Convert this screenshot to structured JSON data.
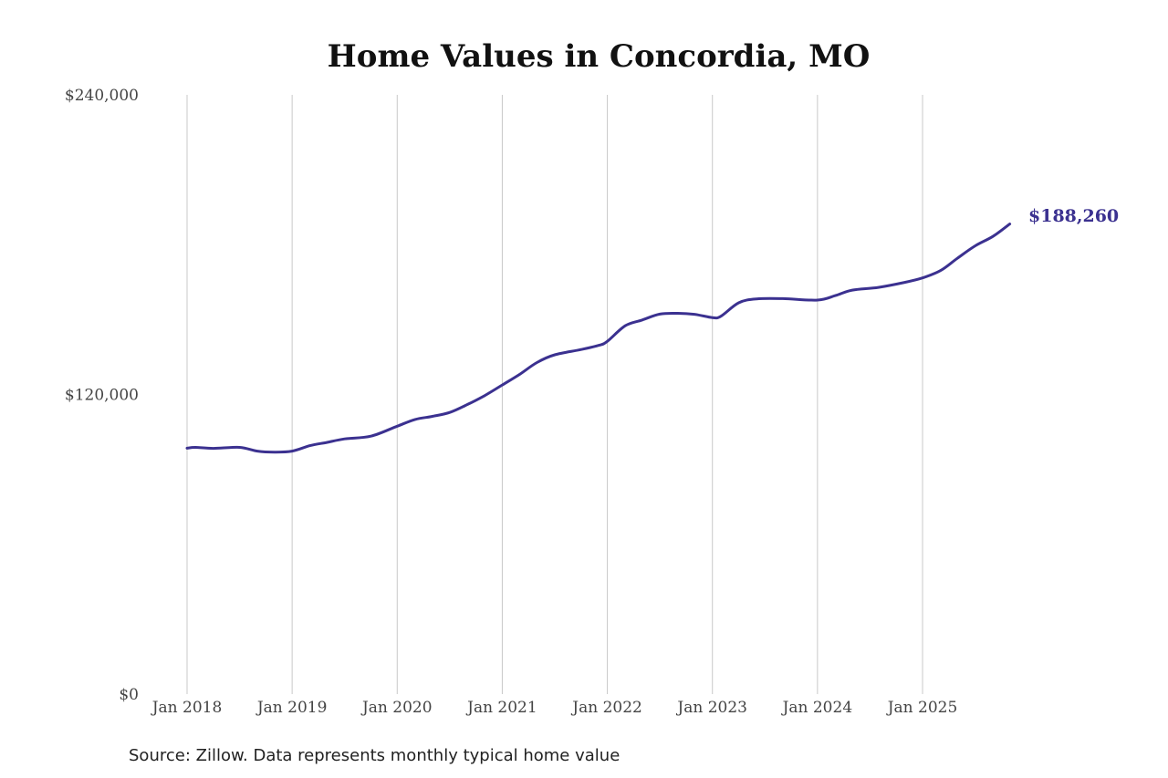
{
  "chart_data": {
    "type": "line",
    "title": "Home Values in Concordia, MO",
    "xlabel": "",
    "ylabel": "",
    "ylim": [
      0,
      240000
    ],
    "y_ticks": [
      "$0",
      "$120,000",
      "$240,000"
    ],
    "y_tick_values": [
      0,
      120000,
      240000
    ],
    "x_ticks": [
      "Jan 2018",
      "Jan 2019",
      "Jan 2020",
      "Jan 2021",
      "Jan 2022",
      "Jan 2023",
      "Jan 2024",
      "Jan 2025"
    ],
    "x_tick_values": [
      2018,
      2019,
      2020,
      2021,
      2022,
      2023,
      2024,
      2025
    ],
    "xlim": [
      2018,
      2025.83
    ],
    "grid": "vertical",
    "end_label": "$188,260",
    "color": "#3b3190",
    "series": [
      {
        "x": [
          2018.0,
          2018.08,
          2018.25,
          2018.5,
          2018.67,
          2018.83,
          2019.0,
          2019.17,
          2019.33,
          2019.5,
          2019.75,
          2020.0,
          2020.17,
          2020.33,
          2020.5,
          2020.67,
          2020.83,
          2021.0,
          2021.17,
          2021.33,
          2021.5,
          2021.75,
          2021.92,
          2022.0,
          2022.17,
          2022.33,
          2022.5,
          2022.67,
          2022.83,
          2023.0,
          2023.08,
          2023.25,
          2023.42,
          2023.67,
          2024.0,
          2024.17,
          2024.33,
          2024.58,
          2024.83,
          2025.0,
          2025.17,
          2025.33,
          2025.5,
          2025.67,
          2025.83
        ],
        "values": [
          98500,
          98800,
          98400,
          98800,
          97300,
          96900,
          97300,
          99500,
          100800,
          102200,
          103300,
          107300,
          110000,
          111200,
          112800,
          116000,
          119500,
          123800,
          128200,
          132800,
          135900,
          138000,
          139700,
          141300,
          147500,
          149800,
          152200,
          152500,
          152100,
          150800,
          151300,
          156700,
          158300,
          158400,
          157800,
          159600,
          161800,
          162900,
          164900,
          166700,
          169600,
          174500,
          179500,
          183300,
          188260
        ]
      }
    ]
  },
  "source": "Source: Zillow. Data represents monthly typical home value"
}
